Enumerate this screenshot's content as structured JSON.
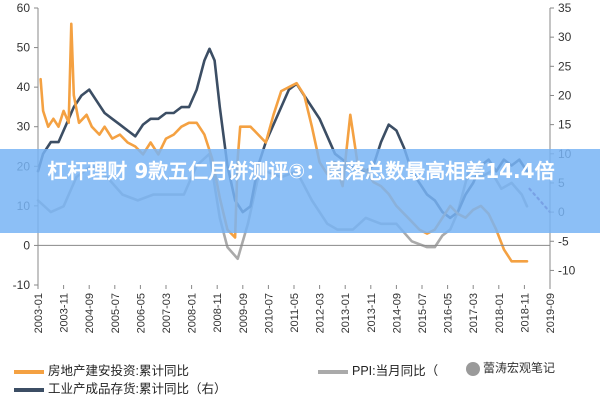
{
  "banner": {
    "text": "杠杆理财 9款五仁月饼测评③：菌落总数最高相差14.4倍"
  },
  "watermark": {
    "text": "蕾涛宏观笔记"
  },
  "chart_data": {
    "type": "line",
    "x_tick_labels": [
      "2003-01",
      "2003-11",
      "2004-09",
      "2005-07",
      "2006-05",
      "2007-03",
      "2008-01",
      "2008-11",
      "2009-09",
      "2010-07",
      "2011-05",
      "2012-03",
      "2013-01",
      "2013-11",
      "2014-09",
      "2015-07",
      "2016-05",
      "2017-03",
      "2018-01",
      "2018-11",
      "2019-09"
    ],
    "y_left": {
      "ticks": [
        -10,
        0,
        10,
        20,
        30,
        40,
        50,
        60
      ],
      "range": [
        -10,
        60
      ]
    },
    "y_right": {
      "ticks": [
        -10,
        -5,
        0,
        5,
        10,
        15,
        20,
        25,
        30,
        35
      ],
      "range": [
        -12.5,
        35
      ]
    },
    "grid": false,
    "colors": {
      "real_estate": "#F4A142",
      "ppi": "#AAAAAA",
      "inventory": "#3C4E64",
      "inventory_forecast": "#7A3B8E"
    },
    "series": [
      {
        "name": "房地产建安投资:累计同比",
        "axis": "left",
        "points": [
          [
            "2003-02",
            42
          ],
          [
            "2003-03",
            34
          ],
          [
            "2003-05",
            30
          ],
          [
            "2003-07",
            32
          ],
          [
            "2003-09",
            30
          ],
          [
            "2003-11",
            34
          ],
          [
            "2004-01",
            31
          ],
          [
            "2004-02",
            56
          ],
          [
            "2004-03",
            38
          ],
          [
            "2004-05",
            31
          ],
          [
            "2004-08",
            33
          ],
          [
            "2004-10",
            30
          ],
          [
            "2005-01",
            28
          ],
          [
            "2005-03",
            30
          ],
          [
            "2005-06",
            27
          ],
          [
            "2005-09",
            28
          ],
          [
            "2005-12",
            26
          ],
          [
            "2006-03",
            25
          ],
          [
            "2006-06",
            23
          ],
          [
            "2006-09",
            26
          ],
          [
            "2006-12",
            23
          ],
          [
            "2007-03",
            27
          ],
          [
            "2007-06",
            28
          ],
          [
            "2007-09",
            30
          ],
          [
            "2007-12",
            31
          ],
          [
            "2008-03",
            31
          ],
          [
            "2008-06",
            28
          ],
          [
            "2008-09",
            22
          ],
          [
            "2008-12",
            12
          ],
          [
            "2009-03",
            4
          ],
          [
            "2009-06",
            2
          ],
          [
            "2009-07",
            22
          ],
          [
            "2009-08",
            30
          ],
          [
            "2009-12",
            30
          ],
          [
            "2010-03",
            28
          ],
          [
            "2010-06",
            26
          ],
          [
            "2010-09",
            33
          ],
          [
            "2010-12",
            39
          ],
          [
            "2011-03",
            40
          ],
          [
            "2011-06",
            41
          ],
          [
            "2011-09",
            38
          ],
          [
            "2011-12",
            30
          ],
          [
            "2012-03",
            21
          ],
          [
            "2012-06",
            18
          ],
          [
            "2012-09",
            21
          ],
          [
            "2012-12",
            15
          ],
          [
            "2013-03",
            33
          ],
          [
            "2013-06",
            20
          ],
          [
            "2013-09",
            19
          ],
          [
            "2013-12",
            16
          ],
          [
            "2014-03",
            15
          ],
          [
            "2014-06",
            13
          ],
          [
            "2014-09",
            10
          ],
          [
            "2014-12",
            8
          ],
          [
            "2015-03",
            6
          ],
          [
            "2015-06",
            4
          ],
          [
            "2015-09",
            3
          ],
          [
            "2015-12",
            4
          ],
          [
            "2016-03",
            7
          ],
          [
            "2016-06",
            10
          ],
          [
            "2016-09",
            8
          ],
          [
            "2016-12",
            7
          ],
          [
            "2017-03",
            9
          ],
          [
            "2017-06",
            10
          ],
          [
            "2017-09",
            8
          ],
          [
            "2017-12",
            4
          ],
          [
            "2018-03",
            -1
          ],
          [
            "2018-06",
            -4
          ],
          [
            "2018-09",
            -4
          ],
          [
            "2018-12",
            -4
          ]
        ]
      },
      {
        "name": "PPI:当月同比",
        "axis": "right",
        "points": [
          [
            "2003-01",
            2
          ],
          [
            "2003-06",
            0
          ],
          [
            "2003-11",
            1
          ],
          [
            "2004-04",
            6
          ],
          [
            "2004-10",
            8
          ],
          [
            "2005-04",
            6
          ],
          [
            "2005-10",
            3
          ],
          [
            "2006-04",
            2
          ],
          [
            "2006-10",
            3
          ],
          [
            "2007-04",
            3
          ],
          [
            "2007-10",
            3
          ],
          [
            "2008-03",
            8
          ],
          [
            "2008-08",
            10
          ],
          [
            "2008-12",
            -1
          ],
          [
            "2009-03",
            -6
          ],
          [
            "2009-07",
            -8
          ],
          [
            "2009-11",
            -2
          ],
          [
            "2010-03",
            6
          ],
          [
            "2010-06",
            7
          ],
          [
            "2010-12",
            6
          ],
          [
            "2011-06",
            7
          ],
          [
            "2011-12",
            2
          ],
          [
            "2012-06",
            -2
          ],
          [
            "2012-10",
            -3
          ],
          [
            "2013-04",
            -3
          ],
          [
            "2013-09",
            -1
          ],
          [
            "2014-03",
            -2
          ],
          [
            "2014-09",
            -2
          ],
          [
            "2015-03",
            -5
          ],
          [
            "2015-09",
            -6
          ],
          [
            "2015-12",
            -6
          ],
          [
            "2016-03",
            -4
          ],
          [
            "2016-06",
            -3
          ],
          [
            "2016-09",
            0
          ],
          [
            "2016-12",
            5
          ],
          [
            "2017-02",
            8
          ],
          [
            "2017-06",
            6
          ],
          [
            "2017-10",
            7
          ],
          [
            "2018-02",
            4
          ],
          [
            "2018-06",
            5
          ],
          [
            "2018-10",
            3
          ],
          [
            "2018-12",
            1
          ]
        ]
      },
      {
        "name": "工业产成品存货:累计同比（右）",
        "axis": "right",
        "points": [
          [
            "2003-01",
            7
          ],
          [
            "2003-03",
            10
          ],
          [
            "2003-06",
            12
          ],
          [
            "2003-09",
            12
          ],
          [
            "2003-12",
            15
          ],
          [
            "2004-03",
            18
          ],
          [
            "2004-06",
            20
          ],
          [
            "2004-09",
            21
          ],
          [
            "2004-12",
            19
          ],
          [
            "2005-03",
            17
          ],
          [
            "2005-06",
            16
          ],
          [
            "2005-09",
            15
          ],
          [
            "2005-12",
            14
          ],
          [
            "2006-03",
            13
          ],
          [
            "2006-06",
            15
          ],
          [
            "2006-09",
            16
          ],
          [
            "2006-12",
            16
          ],
          [
            "2007-03",
            17
          ],
          [
            "2007-06",
            17
          ],
          [
            "2007-09",
            18
          ],
          [
            "2007-12",
            18
          ],
          [
            "2008-03",
            21
          ],
          [
            "2008-06",
            26
          ],
          [
            "2008-08",
            28
          ],
          [
            "2008-10",
            26
          ],
          [
            "2008-12",
            18
          ],
          [
            "2009-03",
            8
          ],
          [
            "2009-06",
            2
          ],
          [
            "2009-09",
            0
          ],
          [
            "2009-12",
            1
          ],
          [
            "2010-03",
            8
          ],
          [
            "2010-06",
            12
          ],
          [
            "2010-09",
            15
          ],
          [
            "2010-12",
            18
          ],
          [
            "2011-03",
            21
          ],
          [
            "2011-06",
            22
          ],
          [
            "2011-09",
            20
          ],
          [
            "2011-12",
            18
          ],
          [
            "2012-03",
            16
          ],
          [
            "2012-06",
            13
          ],
          [
            "2012-09",
            10
          ],
          [
            "2012-12",
            9
          ],
          [
            "2013-03",
            8
          ],
          [
            "2013-06",
            7
          ],
          [
            "2013-09",
            7
          ],
          [
            "2013-12",
            8
          ],
          [
            "2014-03",
            12
          ],
          [
            "2014-06",
            15
          ],
          [
            "2014-09",
            14
          ],
          [
            "2014-12",
            11
          ],
          [
            "2015-03",
            7
          ],
          [
            "2015-06",
            5
          ],
          [
            "2015-09",
            3
          ],
          [
            "2015-12",
            2
          ],
          [
            "2016-03",
            0
          ],
          [
            "2016-06",
            -1
          ],
          [
            "2016-09",
            0
          ],
          [
            "2016-12",
            3
          ],
          [
            "2017-03",
            5
          ],
          [
            "2017-06",
            8
          ],
          [
            "2017-09",
            9
          ],
          [
            "2017-12",
            7
          ],
          [
            "2018-03",
            9
          ],
          [
            "2018-06",
            8
          ],
          [
            "2018-09",
            9
          ],
          [
            "2018-12",
            7
          ]
        ]
      },
      {
        "name": "",
        "axis": "right",
        "style": "dotted",
        "points": [
          [
            "2019-01",
            4
          ],
          [
            "2019-03",
            3
          ],
          [
            "2019-05",
            2
          ],
          [
            "2019-07",
            1
          ],
          [
            "2019-09",
            0
          ]
        ]
      }
    ],
    "legend": [
      {
        "label": "房地产建安投资:累计同比",
        "color": "#F4A142"
      },
      {
        "label": "PPI:当月同比（",
        "color": "#AAAAAA"
      },
      {
        "label": "工业产成品存货:累计同比（右）",
        "color": "#3C4E64"
      }
    ]
  }
}
